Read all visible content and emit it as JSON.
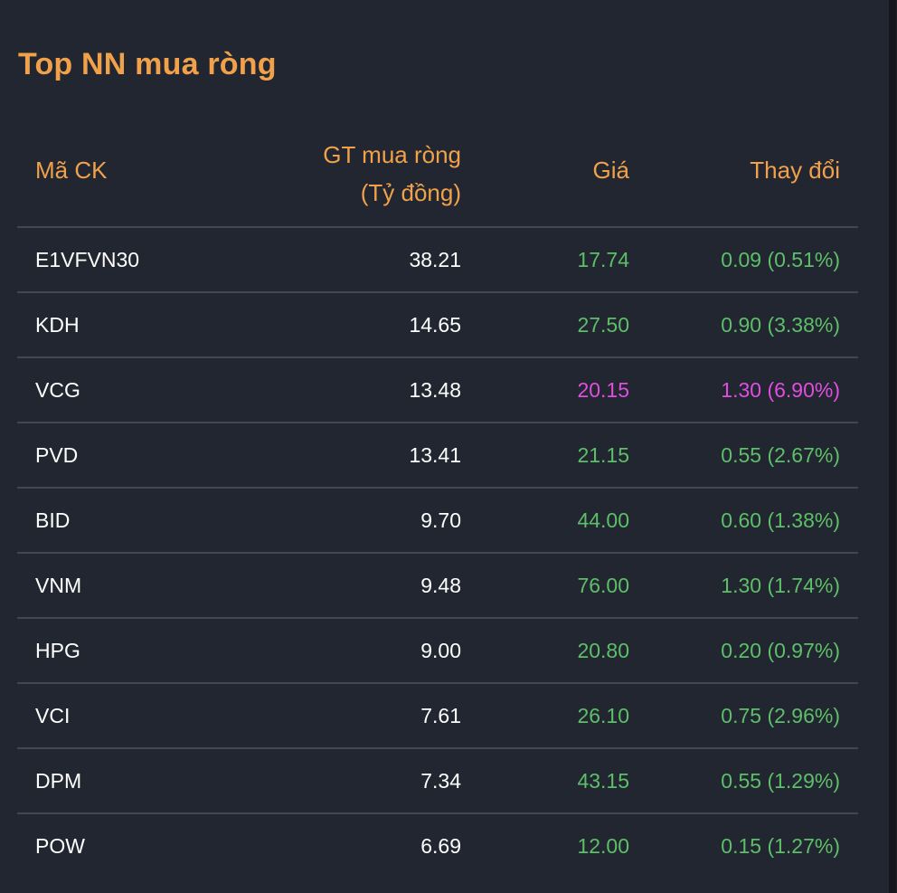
{
  "title": "Top NN mua ròng",
  "colors": {
    "accent": "#f0a14a",
    "up": "#5dbf68",
    "ceiling": "#e04ee0",
    "background": "#222631"
  },
  "header": {
    "symbol": "Mã CK",
    "value_line1": "GT mua ròng",
    "value_line2": "(Tỷ đồng)",
    "price": "Giá",
    "change": "Thay đổi"
  },
  "rows": [
    {
      "symbol": "E1VFVN30",
      "value": "38.21",
      "price": "17.74",
      "change": "0.09 (0.51%)",
      "status": "up"
    },
    {
      "symbol": "KDH",
      "value": "14.65",
      "price": "27.50",
      "change": "0.90 (3.38%)",
      "status": "up"
    },
    {
      "symbol": "VCG",
      "value": "13.48",
      "price": "20.15",
      "change": "1.30 (6.90%)",
      "status": "ceiling"
    },
    {
      "symbol": "PVD",
      "value": "13.41",
      "price": "21.15",
      "change": "0.55 (2.67%)",
      "status": "up"
    },
    {
      "symbol": "BID",
      "value": "9.70",
      "price": "44.00",
      "change": "0.60 (1.38%)",
      "status": "up"
    },
    {
      "symbol": "VNM",
      "value": "9.48",
      "price": "76.00",
      "change": "1.30 (1.74%)",
      "status": "up"
    },
    {
      "symbol": "HPG",
      "value": "9.00",
      "price": "20.80",
      "change": "0.20 (0.97%)",
      "status": "up"
    },
    {
      "symbol": "VCI",
      "value": "7.61",
      "price": "26.10",
      "change": "0.75 (2.96%)",
      "status": "up"
    },
    {
      "symbol": "DPM",
      "value": "7.34",
      "price": "43.15",
      "change": "0.55 (1.29%)",
      "status": "up"
    },
    {
      "symbol": "POW",
      "value": "6.69",
      "price": "12.00",
      "change": "0.15 (1.27%)",
      "status": "up"
    }
  ]
}
